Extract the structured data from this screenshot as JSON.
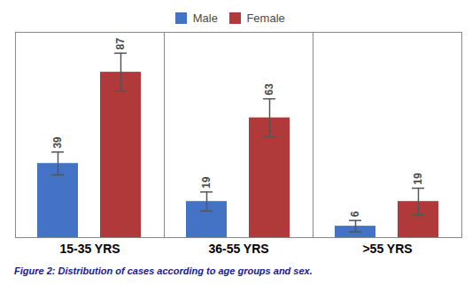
{
  "chart_data": {
    "type": "bar",
    "categories": [
      "15-35 YRS",
      "36-55 YRS",
      ">55 YRS"
    ],
    "series": [
      {
        "name": "Male",
        "color": "#4472C4",
        "values": [
          39,
          19,
          6
        ],
        "errors": [
          6,
          5,
          3
        ]
      },
      {
        "name": "Female",
        "color": "#B03A3A",
        "values": [
          87,
          63,
          19
        ],
        "errors": [
          10,
          10,
          7
        ]
      }
    ],
    "ylim": [
      0,
      108
    ],
    "tick_labels": "x",
    "data_labels": true,
    "legend": "top",
    "caption": "Figure 2: Distribution of cases according to age groups and sex."
  }
}
